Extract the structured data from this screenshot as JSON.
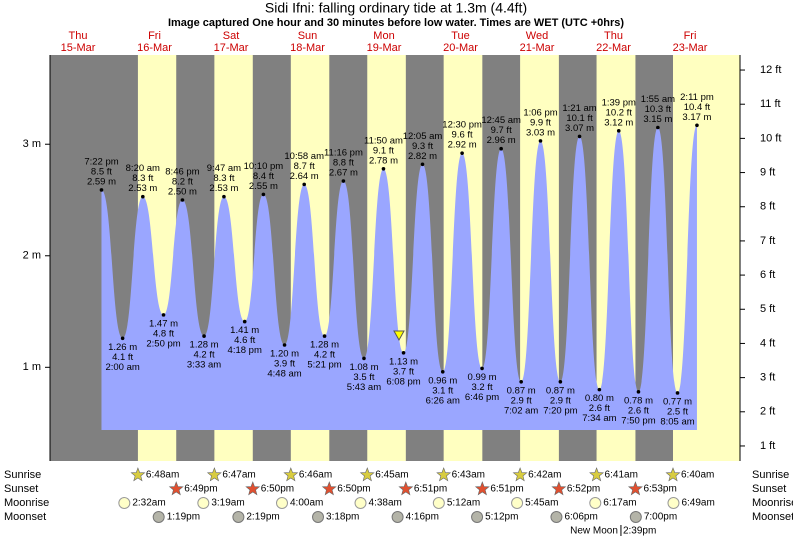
{
  "chart_data": {
    "type": "tide",
    "title": "Sidi Ifni: falling  ordinary tide at 1.3m (4.4ft)",
    "subtitle": "Image captured One hour and 30 minutes before low water. Times are WET (UTC +0hrs)",
    "ylim": [
      0.16,
      3.8
    ],
    "yticks": [
      {
        "value": 1,
        "label": "1 m"
      },
      {
        "value": 2,
        "label": "2 m"
      },
      {
        "value": 3,
        "label": "3 m"
      }
    ],
    "y2lim": [
      0.56,
      12.44
    ],
    "y2ticks": [
      {
        "value": 1,
        "label": "1 ft"
      },
      {
        "value": 2,
        "label": "2 ft"
      },
      {
        "value": 3,
        "label": "3 ft"
      },
      {
        "value": 4,
        "label": "4 ft"
      },
      {
        "value": 5,
        "label": "5 ft"
      },
      {
        "value": 6,
        "label": "6 ft"
      },
      {
        "value": 7,
        "label": "7 ft"
      },
      {
        "value": 8,
        "label": "8 ft"
      },
      {
        "value": 9,
        "label": "9 ft"
      },
      {
        "value": 10,
        "label": "10 ft"
      },
      {
        "value": 11,
        "label": "11 ft"
      },
      {
        "value": 12,
        "label": "12 ft"
      }
    ],
    "row_labels": {
      "sunrise": "Sunrise",
      "sunset": "Sunset",
      "moonrise": "Moonrise",
      "moonset": "Moonset"
    },
    "days": [
      {
        "name": "Thu",
        "date": "15-Mar",
        "sunrise": null,
        "sunset": null,
        "moonrise": null,
        "moonset": null,
        "tides": [
          {
            "time": "7:22 pm",
            "height_m": 2.59,
            "height_m_label": "2.59 m",
            "height_ft": 8.5,
            "height_ft_label": "8.5 ft"
          }
        ]
      },
      {
        "name": "Fri",
        "date": "16-Mar",
        "sunrise": "6:48am",
        "sunset": "6:49pm",
        "moonrise": "2:32am",
        "moonset": "1:19pm",
        "tides": [
          {
            "time": "2:00 am",
            "height_m": 1.26,
            "height_m_label": "1.26 m",
            "height_ft": 4.1,
            "height_ft_label": "4.1 ft"
          },
          {
            "time": "8:20 am",
            "height_m": 2.53,
            "height_m_label": "2.53 m",
            "height_ft": 8.3,
            "height_ft_label": "8.3 ft"
          },
          {
            "time": "2:50 pm",
            "height_m": 1.47,
            "height_m_label": "1.47 m",
            "height_ft": 4.8,
            "height_ft_label": "4.8 ft"
          },
          {
            "time": "8:46 pm",
            "height_m": 2.5,
            "height_m_label": "2.50 m",
            "height_ft": 8.2,
            "height_ft_label": "8.2 ft"
          }
        ]
      },
      {
        "name": "Sat",
        "date": "17-Mar",
        "sunrise": "6:47am",
        "sunset": "6:50pm",
        "moonrise": "3:19am",
        "moonset": "2:19pm",
        "tides": [
          {
            "time": "3:33 am",
            "height_m": 1.28,
            "height_m_label": "1.28 m",
            "height_ft": 4.2,
            "height_ft_label": "4.2 ft"
          },
          {
            "time": "9:47 am",
            "height_m": 2.53,
            "height_m_label": "2.53 m",
            "height_ft": 8.3,
            "height_ft_label": "8.3 ft"
          },
          {
            "time": "4:18 pm",
            "height_m": 1.41,
            "height_m_label": "1.41 m",
            "height_ft": 4.6,
            "height_ft_label": "4.6 ft"
          },
          {
            "time": "10:10 pm",
            "height_m": 2.55,
            "height_m_label": "2.55 m",
            "height_ft": 8.4,
            "height_ft_label": "8.4 ft"
          }
        ]
      },
      {
        "name": "Sun",
        "date": "18-Mar",
        "sunrise": "6:46am",
        "sunset": "6:50pm",
        "moonrise": "4:00am",
        "moonset": "3:18pm",
        "tides": [
          {
            "time": "4:48 am",
            "height_m": 1.2,
            "height_m_label": "1.20 m",
            "height_ft": 3.9,
            "height_ft_label": "3.9 ft"
          },
          {
            "time": "10:58 am",
            "height_m": 2.64,
            "height_m_label": "2.64 m",
            "height_ft": 8.7,
            "height_ft_label": "8.7 ft"
          },
          {
            "time": "5:21 pm",
            "height_m": 1.28,
            "height_m_label": "1.28 m",
            "height_ft": 4.2,
            "height_ft_label": "4.2 ft"
          },
          {
            "time": "11:16 pm",
            "height_m": 2.67,
            "height_m_label": "2.67 m",
            "height_ft": 8.8,
            "height_ft_label": "8.8 ft"
          }
        ]
      },
      {
        "name": "Mon",
        "date": "19-Mar",
        "sunrise": "6:45am",
        "sunset": "6:51pm",
        "moonrise": "4:38am",
        "moonset": "4:16pm",
        "tides": [
          {
            "time": "5:43 am",
            "height_m": 1.08,
            "height_m_label": "1.08 m",
            "height_ft": 3.5,
            "height_ft_label": "3.5 ft"
          },
          {
            "time": "11:50 am",
            "height_m": 2.78,
            "height_m_label": "2.78 m",
            "height_ft": 9.1,
            "height_ft_label": "9.1 ft"
          },
          {
            "time": "6:08 pm",
            "height_m": 1.13,
            "height_m_label": "1.13 m",
            "height_ft": 3.7,
            "height_ft_label": "3.7 ft"
          }
        ]
      },
      {
        "name": "Tue",
        "date": "20-Mar",
        "sunrise": "6:43am",
        "sunset": "6:51pm",
        "moonrise": "5:12am",
        "moonset": "5:12pm",
        "tides": [
          {
            "time": "12:05 am",
            "height_m": 2.82,
            "height_m_label": "2.82 m",
            "height_ft": 9.3,
            "height_ft_label": "9.3 ft"
          },
          {
            "time": "6:26 am",
            "height_m": 0.96,
            "height_m_label": "0.96 m",
            "height_ft": 3.1,
            "height_ft_label": "3.1 ft"
          },
          {
            "time": "12:30 pm",
            "height_m": 2.92,
            "height_m_label": "2.92 m",
            "height_ft": 9.6,
            "height_ft_label": "9.6 ft"
          },
          {
            "time": "6:46 pm",
            "height_m": 0.99,
            "height_m_label": "0.99 m",
            "height_ft": 3.2,
            "height_ft_label": "3.2 ft"
          }
        ]
      },
      {
        "name": "Wed",
        "date": "21-Mar",
        "sunrise": "6:42am",
        "sunset": "6:52pm",
        "moonrise": "5:45am",
        "moonset": "6:06pm",
        "tides": [
          {
            "time": "12:45 am",
            "height_m": 2.96,
            "height_m_label": "2.96 m",
            "height_ft": 9.7,
            "height_ft_label": "9.7 ft"
          },
          {
            "time": "7:02 am",
            "height_m": 0.87,
            "height_m_label": "0.87 m",
            "height_ft": 2.9,
            "height_ft_label": "2.9 ft"
          },
          {
            "time": "1:06 pm",
            "height_m": 3.03,
            "height_m_label": "3.03 m",
            "height_ft": 9.9,
            "height_ft_label": "9.9 ft"
          },
          {
            "time": "7:20 pm",
            "height_m": 0.87,
            "height_m_label": "0.87 m",
            "height_ft": 2.9,
            "height_ft_label": "2.9 ft"
          }
        ]
      },
      {
        "name": "Thu",
        "date": "22-Mar",
        "sunrise": "6:41am",
        "sunset": "6:53pm",
        "moonrise": "6:17am",
        "moonset": "7:00pm",
        "moon_phase": {
          "name": "New Moon",
          "time": "2:39pm"
        },
        "tides": [
          {
            "time": "1:21 am",
            "height_m": 3.07,
            "height_m_label": "3.07 m",
            "height_ft": 10.1,
            "height_ft_label": "10.1 ft"
          },
          {
            "time": "7:34 am",
            "height_m": 0.8,
            "height_m_label": "0.80 m",
            "height_ft": 2.6,
            "height_ft_label": "2.6 ft"
          },
          {
            "time": "1:39 pm",
            "height_m": 3.12,
            "height_m_label": "3.12 m",
            "height_ft": 10.2,
            "height_ft_label": "10.2 ft"
          },
          {
            "time": "7:50 pm",
            "height_m": 0.78,
            "height_m_label": "0.78 m",
            "height_ft": 2.6,
            "height_ft_label": "2.6 ft"
          }
        ]
      },
      {
        "name": "Fri",
        "date": "23-Mar",
        "sunrise": "6:40am",
        "sunset": null,
        "moonrise": "6:49am",
        "moonset": null,
        "tides": [
          {
            "time": "1:55 am",
            "height_m": 3.15,
            "height_m_label": "3.15 m",
            "height_ft": 10.3,
            "height_ft_label": "10.3 ft"
          },
          {
            "time": "8:05 am",
            "height_m": 0.77,
            "height_m_label": "0.77 m",
            "height_ft": 2.5,
            "height_ft_label": "2.5 ft"
          },
          {
            "time": "2:11 pm",
            "height_m": 3.17,
            "height_m_label": "3.17 m",
            "height_ft": 10.4,
            "height_ft_label": "10.4 ft"
          }
        ]
      }
    ]
  }
}
